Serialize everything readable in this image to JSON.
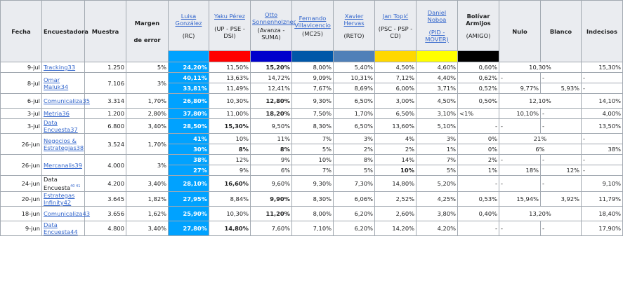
{
  "headers": {
    "fecha": "Fecha",
    "encuestadora": "Encuestadora",
    "muestra": "Muestra",
    "margen_line1": "Margen",
    "margen_line2": "de error",
    "nulo": "Nulo",
    "blanco": "Blanco",
    "indecisos": "Indecisos"
  },
  "candidates": [
    {
      "name": "Luisa González",
      "party": "(RC)",
      "color": "#00a2ff",
      "name_link": true,
      "party_link": false
    },
    {
      "name": "Yaku Pérez",
      "party": "(UP - PSE - DSI)",
      "color": "#ff0000",
      "name_link": true,
      "party_link": false
    },
    {
      "name": "Otto Sonnenholzner",
      "party": "(Avanza - SUMA)",
      "color": "#0000cc",
      "name_link": true,
      "party_link": false
    },
    {
      "name": "Fernando Villavicencio",
      "party": "(MC25)",
      "color": "#0057a8",
      "name_link": true,
      "party_link": false
    },
    {
      "name": "Xavier Hervas",
      "party": "(RETO)",
      "color": "#5080b8",
      "name_link": true,
      "party_link": false
    },
    {
      "name": "Jan Topić",
      "party": "(PSC - PSP - CD)",
      "color": "#ffd800",
      "name_link": true,
      "party_link": false
    },
    {
      "name": "Daniel Noboa",
      "party": "(PID - MOVER)",
      "color": "#ffff00",
      "name_link": true,
      "party_link": true
    },
    {
      "name": "Bolívar Armijos",
      "party": "(AMIGO)",
      "color": "#000000",
      "name_link": false,
      "party_link": false
    }
  ],
  "rows": [
    {
      "date": "9-jul",
      "pollster": "Tracking33",
      "sample": "1.250",
      "margin": "5%",
      "v": [
        "24,20%",
        "11,50%",
        "15,20%",
        "8,00%",
        "5,40%",
        "4,50%",
        "4,60%",
        "0,60%"
      ],
      "bold": [
        0,
        2
      ],
      "nulo_blanco": "10,30%",
      "indecisos": "15,30%"
    },
    {
      "date": "8-jul",
      "pollster": "Omar Maluk34",
      "sample": "7.106",
      "margin": "3%",
      "a": [
        "40,11%",
        "13,63%",
        "14,72%",
        "9,09%",
        "10,31%",
        "7,12%",
        "4,40%",
        "0,62%"
      ],
      "a_extra": [
        "-",
        "-",
        "-"
      ],
      "b": [
        "33,81%",
        "11,49%",
        "12,41%",
        "7,67%",
        "8,69%",
        "6,00%",
        "3,71%",
        "0,52%"
      ],
      "b_extra": [
        "9,77%",
        "5,93%",
        "-"
      ]
    },
    {
      "date": "6-jul",
      "pollster": "Comunicaliza35",
      "sample": "3.314",
      "margin": "1,70%",
      "v": [
        "26,80%",
        "10,30%",
        "12,80%",
        "9,30%",
        "6,50%",
        "3,00%",
        "4,50%",
        "0,50%"
      ],
      "nulo_blanco": "12,10%",
      "indecisos": "14,10%"
    },
    {
      "date": "3-jul",
      "pollster": "Metria36",
      "sample": "1.200",
      "margin": "2,80%",
      "v": [
        "37,80%",
        "11,00%",
        "18,20%",
        "7,50%",
        "1,70%",
        "6,50%",
        "3,10%",
        "<1%"
      ],
      "nulo": "10,10%",
      "blanco": "-",
      "indecisos": "4,00%"
    },
    {
      "date": "3-jul",
      "pollster": "Data Encuesta37",
      "sample": "6.800",
      "margin": "3,40%",
      "v": [
        "28,50%",
        "15,30%",
        "9,50%",
        "8,30%",
        "6,50%",
        "13,60%",
        "5,10%",
        "-"
      ],
      "nulo": "-",
      "blanco": "-",
      "indecisos": "13,50%"
    },
    {
      "date": "26-jun",
      "pollster": "Negocios & Estrategias38",
      "sample": "3.524",
      "margin": "1,70%",
      "a": [
        "41%",
        "10%",
        "11%",
        "7%",
        "3%",
        "4%",
        "3%",
        "0%"
      ],
      "a_nb": "21%",
      "a_ind": "-",
      "b": [
        "30%",
        "8%",
        "8%",
        "5%",
        "2%",
        "2%",
        "1%",
        "0%"
      ],
      "b_nb": "6%",
      "b_ind": "38%"
    },
    {
      "date": "26-jun",
      "pollster": "Mercanalis39",
      "sample": "4.000",
      "margin": "3%",
      "a": [
        "38%",
        "12%",
        "9%",
        "10%",
        "8%",
        "14%",
        "7%",
        "2%"
      ],
      "a_extra": [
        "-",
        "-",
        "-"
      ],
      "b": [
        "27%",
        "9%",
        "6%",
        "7%",
        "5%",
        "10%",
        "5%",
        "1%"
      ],
      "b_extra": [
        "18%",
        "12%",
        "-"
      ]
    },
    {
      "date": "24-jun",
      "pollster": "Data Encuesta",
      "pollster_sup": "40 41",
      "sample": "4.200",
      "margin": "3,40%",
      "v": [
        "28,10%",
        "16,60%",
        "9,60%",
        "9,30%",
        "7,30%",
        "14,80%",
        "5,20%",
        "-"
      ],
      "nulo": "-",
      "blanco": "-",
      "indecisos": "9,10%"
    },
    {
      "date": "20-jun",
      "pollster": "Estrategas Infinity42",
      "sample": "3.645",
      "margin": "1,82%",
      "v": [
        "27,95%",
        "8,84%",
        "9,90%",
        "8,30%",
        "6,06%",
        "2,52%",
        "4,25%",
        "0,53%"
      ],
      "nulo": "15,94%",
      "blanco": "3,92%",
      "indecisos": "11,79%"
    },
    {
      "date": "18-jun",
      "pollster": "Comunicaliza43",
      "sample": "3.656",
      "margin": "1,62%",
      "v": [
        "25,90%",
        "10,30%",
        "11,20%",
        "8,00%",
        "6,20%",
        "2,60%",
        "3,80%",
        "0,40%"
      ],
      "nulo_blanco": "13,20%",
      "indecisos": "18,40%"
    },
    {
      "date": "9-jun",
      "pollster": "Data Encuesta44",
      "sample": "4.800",
      "margin": "3,40%",
      "v": [
        "27,80%",
        "14,80%",
        "7,60%",
        "7,10%",
        "6,20%",
        "14,20%",
        "4,20%",
        "-"
      ],
      "nulo": "-",
      "blanco": "-",
      "indecisos": "17,90%"
    }
  ]
}
